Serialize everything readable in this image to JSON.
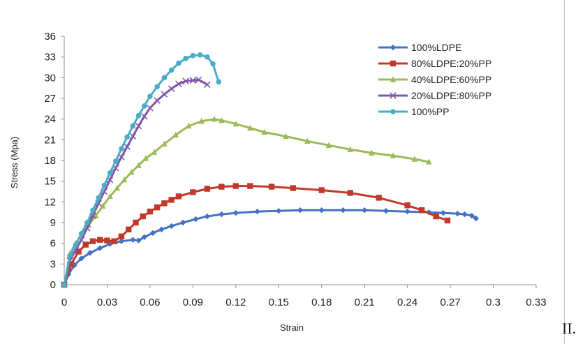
{
  "page": {
    "side_label": "II."
  },
  "chart_data": {
    "type": "line",
    "title": "",
    "xlabel": "Strain",
    "ylabel": "Stress (Mpa)",
    "xlim": [
      0,
      0.33
    ],
    "ylim": [
      0,
      36
    ],
    "xticks": [
      0,
      0.03,
      0.06,
      0.09,
      0.12,
      0.15,
      0.18,
      0.21,
      0.24,
      0.27,
      0.3,
      0.33
    ],
    "xtick_labels": [
      "0",
      "0.03",
      "0.06",
      "0.09",
      "0.12",
      "0.15",
      "0.18",
      "0.21",
      "0.24",
      "0.27",
      "0.3",
      "0.33"
    ],
    "yticks": [
      0,
      3,
      6,
      9,
      12,
      15,
      18,
      21,
      24,
      27,
      30,
      33,
      36
    ],
    "ytick_labels": [
      "0",
      "3",
      "6",
      "9",
      "12",
      "15",
      "18",
      "21",
      "24",
      "27",
      "30",
      "33",
      "36"
    ],
    "grid": false,
    "legend_position": "top-right",
    "series": [
      {
        "name": "100%LDPE",
        "color": "#4472c4",
        "marker": "diamond",
        "x": [
          0,
          0.003,
          0.007,
          0.012,
          0.018,
          0.025,
          0.032,
          0.04,
          0.048,
          0.052,
          0.056,
          0.062,
          0.068,
          0.075,
          0.083,
          0.092,
          0.1,
          0.11,
          0.12,
          0.135,
          0.15,
          0.165,
          0.18,
          0.195,
          0.21,
          0.225,
          0.24,
          0.255,
          0.265,
          0.275,
          0.28,
          0.285,
          0.288
        ],
        "y": [
          0,
          1.5,
          2.8,
          3.8,
          4.6,
          5.3,
          5.9,
          6.3,
          6.5,
          6.4,
          6.9,
          7.5,
          8.0,
          8.5,
          9.0,
          9.5,
          9.9,
          10.2,
          10.4,
          10.6,
          10.7,
          10.8,
          10.8,
          10.8,
          10.8,
          10.7,
          10.6,
          10.5,
          10.4,
          10.3,
          10.2,
          10.0,
          9.6
        ]
      },
      {
        "name": "80%LDPE:20%PP",
        "color": "#c0392b",
        "marker": "square",
        "x": [
          0,
          0.005,
          0.01,
          0.015,
          0.02,
          0.025,
          0.03,
          0.035,
          0.04,
          0.045,
          0.05,
          0.055,
          0.06,
          0.065,
          0.07,
          0.075,
          0.08,
          0.09,
          0.1,
          0.11,
          0.12,
          0.13,
          0.145,
          0.16,
          0.18,
          0.2,
          0.22,
          0.24,
          0.25,
          0.26,
          0.268
        ],
        "y": [
          0,
          3.0,
          4.8,
          5.8,
          6.3,
          6.5,
          6.4,
          6.3,
          7.0,
          8.0,
          9.0,
          9.9,
          10.6,
          11.2,
          11.8,
          12.3,
          12.8,
          13.4,
          13.9,
          14.2,
          14.3,
          14.3,
          14.2,
          14.0,
          13.7,
          13.3,
          12.6,
          11.5,
          10.8,
          9.9,
          9.3
        ]
      },
      {
        "name": "40%LDPE:60%PP",
        "color": "#9bbb59",
        "marker": "triangle",
        "x": [
          0,
          0.004,
          0.008,
          0.012,
          0.017,
          0.022,
          0.027,
          0.032,
          0.037,
          0.042,
          0.047,
          0.052,
          0.057,
          0.063,
          0.07,
          0.078,
          0.087,
          0.096,
          0.105,
          0.11,
          0.12,
          0.13,
          0.14,
          0.155,
          0.17,
          0.185,
          0.2,
          0.215,
          0.23,
          0.245,
          0.255
        ],
        "y": [
          0,
          4.5,
          6.0,
          7.2,
          8.6,
          10.0,
          11.4,
          12.8,
          14.0,
          15.2,
          16.3,
          17.3,
          18.3,
          19.2,
          20.4,
          21.7,
          23.0,
          23.7,
          24.0,
          23.8,
          23.3,
          22.7,
          22.1,
          21.5,
          20.8,
          20.2,
          19.6,
          19.1,
          18.7,
          18.2,
          17.8
        ]
      },
      {
        "name": "20%LDPE:80%PP",
        "color": "#7e57a8",
        "marker": "x",
        "x": [
          0,
          0.004,
          0.008,
          0.012,
          0.016,
          0.02,
          0.024,
          0.028,
          0.032,
          0.036,
          0.04,
          0.044,
          0.048,
          0.052,
          0.056,
          0.06,
          0.065,
          0.07,
          0.075,
          0.08,
          0.085,
          0.09,
          0.094,
          0.1
        ],
        "y": [
          0,
          3.5,
          5.0,
          6.5,
          8.2,
          10.0,
          11.8,
          13.5,
          15.2,
          16.9,
          18.5,
          20.0,
          21.5,
          23.0,
          24.4,
          25.6,
          26.7,
          27.6,
          28.4,
          29.1,
          29.5,
          29.6,
          29.7,
          29.0
        ]
      },
      {
        "name": "100%PP",
        "color": "#4bacc6",
        "marker": "circle",
        "x": [
          0,
          0.004,
          0.008,
          0.012,
          0.016,
          0.02,
          0.024,
          0.028,
          0.032,
          0.036,
          0.04,
          0.044,
          0.048,
          0.052,
          0.056,
          0.06,
          0.065,
          0.07,
          0.075,
          0.08,
          0.085,
          0.09,
          0.095,
          0.1,
          0.104,
          0.108
        ],
        "y": [
          0,
          4.2,
          5.8,
          7.4,
          9.0,
          10.8,
          12.6,
          14.4,
          16.2,
          17.9,
          19.7,
          21.4,
          23.0,
          24.5,
          25.9,
          27.3,
          28.7,
          30.0,
          31.1,
          32.1,
          32.8,
          33.2,
          33.3,
          33.0,
          32.0,
          29.4
        ]
      }
    ]
  }
}
